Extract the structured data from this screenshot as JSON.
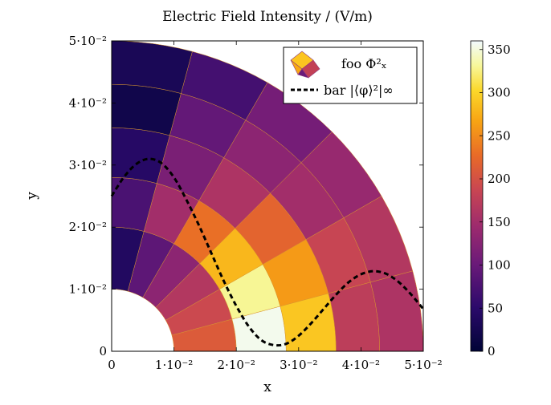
{
  "chart_data": {
    "type": "heatmap",
    "title": "Electric Field Intensity / (V/m)",
    "xlabel": "x",
    "ylabel": "y",
    "xlim": [
      0,
      0.05
    ],
    "ylim": [
      0,
      0.05
    ],
    "x_ticks": [
      {
        "value": 0,
        "label": "0"
      },
      {
        "value": 0.01,
        "label": "1·10⁻²"
      },
      {
        "value": 0.02,
        "label": "2·10⁻²"
      },
      {
        "value": 0.03,
        "label": "3·10⁻²"
      },
      {
        "value": 0.04,
        "label": "4·10⁻²"
      },
      {
        "value": 0.05,
        "label": "5·10⁻²"
      }
    ],
    "y_ticks": [
      {
        "value": 0,
        "label": "0"
      },
      {
        "value": 0.01,
        "label": "1·10⁻²"
      },
      {
        "value": 0.02,
        "label": "2·10⁻²"
      },
      {
        "value": 0.03,
        "label": "3·10⁻²"
      },
      {
        "value": 0.04,
        "label": "4·10⁻²"
      },
      {
        "value": 0.05,
        "label": "5·10⁻²"
      }
    ],
    "colorbar": {
      "range": [
        0,
        360
      ],
      "ticks": [
        "0",
        "50",
        "100",
        "150",
        "200",
        "250",
        "300",
        "350"
      ],
      "colormap": "inferno-like"
    },
    "legend": {
      "placement": "top-right",
      "entries": [
        {
          "label": "foo Φ²ₓ",
          "kind": "patch"
        },
        {
          "label": "bar |⟨φ⟩²|∞",
          "kind": "dashed-line",
          "color": "#000000"
        }
      ]
    },
    "domain": {
      "shape": "quarter-annulus",
      "inner_radius": 0.01,
      "outer_radius": 0.05
    },
    "mesh_cells": [
      {
        "r": [
          0.01,
          0.02
        ],
        "theta_deg": [
          0,
          15
        ],
        "value": 210
      },
      {
        "r": [
          0.01,
          0.02
        ],
        "theta_deg": [
          15,
          30
        ],
        "value": 190
      },
      {
        "r": [
          0.01,
          0.02
        ],
        "theta_deg": [
          30,
          45
        ],
        "value": 165
      },
      {
        "r": [
          0.01,
          0.02
        ],
        "theta_deg": [
          45,
          60
        ],
        "value": 130
      },
      {
        "r": [
          0.01,
          0.02
        ],
        "theta_deg": [
          60,
          75
        ],
        "value": 90
      },
      {
        "r": [
          0.01,
          0.02
        ],
        "theta_deg": [
          75,
          90
        ],
        "value": 40
      },
      {
        "r": [
          0.02,
          0.028
        ],
        "theta_deg": [
          0,
          15
        ],
        "value": 355
      },
      {
        "r": [
          0.02,
          0.028
        ],
        "theta_deg": [
          15,
          30
        ],
        "value": 330
      },
      {
        "r": [
          0.02,
          0.028
        ],
        "theta_deg": [
          30,
          45
        ],
        "value": 280
      },
      {
        "r": [
          0.02,
          0.028
        ],
        "theta_deg": [
          45,
          60
        ],
        "value": 230
      },
      {
        "r": [
          0.02,
          0.028
        ],
        "theta_deg": [
          60,
          75
        ],
        "value": 150
      },
      {
        "r": [
          0.02,
          0.028
        ],
        "theta_deg": [
          75,
          90
        ],
        "value": 75
      },
      {
        "r": [
          0.028,
          0.036
        ],
        "theta_deg": [
          0,
          15
        ],
        "value": 290
      },
      {
        "r": [
          0.028,
          0.036
        ],
        "theta_deg": [
          15,
          30
        ],
        "value": 260
      },
      {
        "r": [
          0.028,
          0.036
        ],
        "theta_deg": [
          30,
          45
        ],
        "value": 220
      },
      {
        "r": [
          0.028,
          0.036
        ],
        "theta_deg": [
          45,
          60
        ],
        "value": 160
      },
      {
        "r": [
          0.028,
          0.036
        ],
        "theta_deg": [
          60,
          75
        ],
        "value": 115
      },
      {
        "r": [
          0.028,
          0.036
        ],
        "theta_deg": [
          75,
          90
        ],
        "value": 45
      },
      {
        "r": [
          0.036,
          0.043
        ],
        "theta_deg": [
          0,
          15
        ],
        "value": 175
      },
      {
        "r": [
          0.036,
          0.043
        ],
        "theta_deg": [
          15,
          30
        ],
        "value": 185
      },
      {
        "r": [
          0.036,
          0.043
        ],
        "theta_deg": [
          30,
          45
        ],
        "value": 150
      },
      {
        "r": [
          0.036,
          0.043
        ],
        "theta_deg": [
          45,
          60
        ],
        "value": 130
      },
      {
        "r": [
          0.036,
          0.043
        ],
        "theta_deg": [
          60,
          75
        ],
        "value": 95
      },
      {
        "r": [
          0.036,
          0.043
        ],
        "theta_deg": [
          75,
          90
        ],
        "value": 20
      },
      {
        "r": [
          0.043,
          0.05
        ],
        "theta_deg": [
          0,
          15
        ],
        "value": 160
      },
      {
        "r": [
          0.043,
          0.05
        ],
        "theta_deg": [
          15,
          30
        ],
        "value": 165
      },
      {
        "r": [
          0.043,
          0.05
        ],
        "theta_deg": [
          30,
          45
        ],
        "value": 140
      },
      {
        "r": [
          0.043,
          0.05
        ],
        "theta_deg": [
          45,
          60
        ],
        "value": 110
      },
      {
        "r": [
          0.043,
          0.05
        ],
        "theta_deg": [
          60,
          75
        ],
        "value": 70
      },
      {
        "r": [
          0.043,
          0.05
        ],
        "theta_deg": [
          75,
          90
        ],
        "value": 30
      }
    ],
    "series": [
      {
        "label": "bar |⟨φ⟩²|∞",
        "style": "dashed",
        "x": [
          0.0,
          0.002,
          0.004,
          0.006,
          0.008,
          0.01,
          0.012,
          0.014,
          0.016,
          0.018,
          0.02,
          0.022,
          0.024,
          0.026,
          0.028,
          0.03,
          0.032,
          0.034,
          0.036,
          0.038,
          0.04,
          0.042,
          0.044,
          0.046,
          0.048,
          0.05
        ],
        "y": [
          0.025,
          0.0281,
          0.0302,
          0.031,
          0.0303,
          0.028,
          0.0244,
          0.0203,
          0.0158,
          0.0113,
          0.0073,
          0.004,
          0.0018,
          0.001,
          0.0012,
          0.0025,
          0.0045,
          0.0068,
          0.0091,
          0.0111,
          0.0124,
          0.0129,
          0.0125,
          0.0112,
          0.0092,
          0.0068
        ]
      }
    ]
  }
}
